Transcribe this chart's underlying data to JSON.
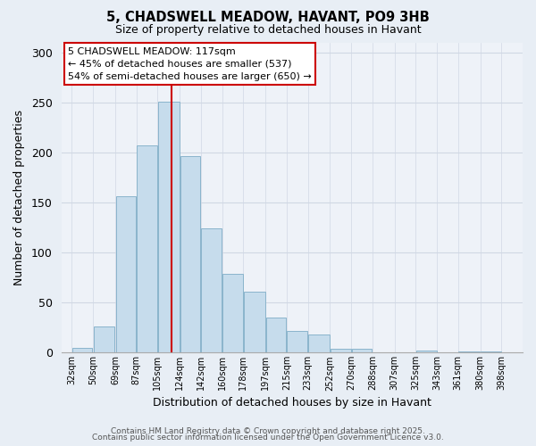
{
  "title": "5, CHADSWELL MEADOW, HAVANT, PO9 3HB",
  "subtitle": "Size of property relative to detached houses in Havant",
  "xlabel": "Distribution of detached houses by size in Havant",
  "ylabel": "Number of detached properties",
  "bar_left_edges": [
    32,
    50,
    69,
    87,
    105,
    124,
    142,
    160,
    178,
    197,
    215,
    233,
    252,
    270,
    288,
    307,
    325,
    343,
    361,
    380
  ],
  "bar_heights": [
    5,
    26,
    156,
    207,
    251,
    196,
    124,
    79,
    61,
    35,
    22,
    18,
    4,
    4,
    0,
    0,
    2,
    0,
    1,
    1
  ],
  "bar_color": "#c6dcec",
  "bar_edge_color": "#8ab4cc",
  "grid_color": "#d0d8e4",
  "vline_x": 117,
  "vline_color": "#cc0000",
  "annotation_title": "5 CHADSWELL MEADOW: 117sqm",
  "annotation_line1": "← 45% of detached houses are smaller (537)",
  "annotation_line2": "54% of semi-detached houses are larger (650) →",
  "annotation_box_facecolor": "#ffffff",
  "annotation_box_edgecolor": "#cc0000",
  "tick_labels": [
    "32sqm",
    "50sqm",
    "69sqm",
    "87sqm",
    "105sqm",
    "124sqm",
    "142sqm",
    "160sqm",
    "178sqm",
    "197sqm",
    "215sqm",
    "233sqm",
    "252sqm",
    "270sqm",
    "288sqm",
    "307sqm",
    "325sqm",
    "343sqm",
    "361sqm",
    "380sqm",
    "398sqm"
  ],
  "ylim": [
    0,
    310
  ],
  "xlim": [
    23,
    416
  ],
  "yticks": [
    0,
    50,
    100,
    150,
    200,
    250,
    300
  ],
  "footer1": "Contains HM Land Registry data © Crown copyright and database right 2025.",
  "footer2": "Contains public sector information licensed under the Open Government Licence v3.0.",
  "bg_color": "#e8eef5",
  "plot_bg_color": "#eef2f8"
}
